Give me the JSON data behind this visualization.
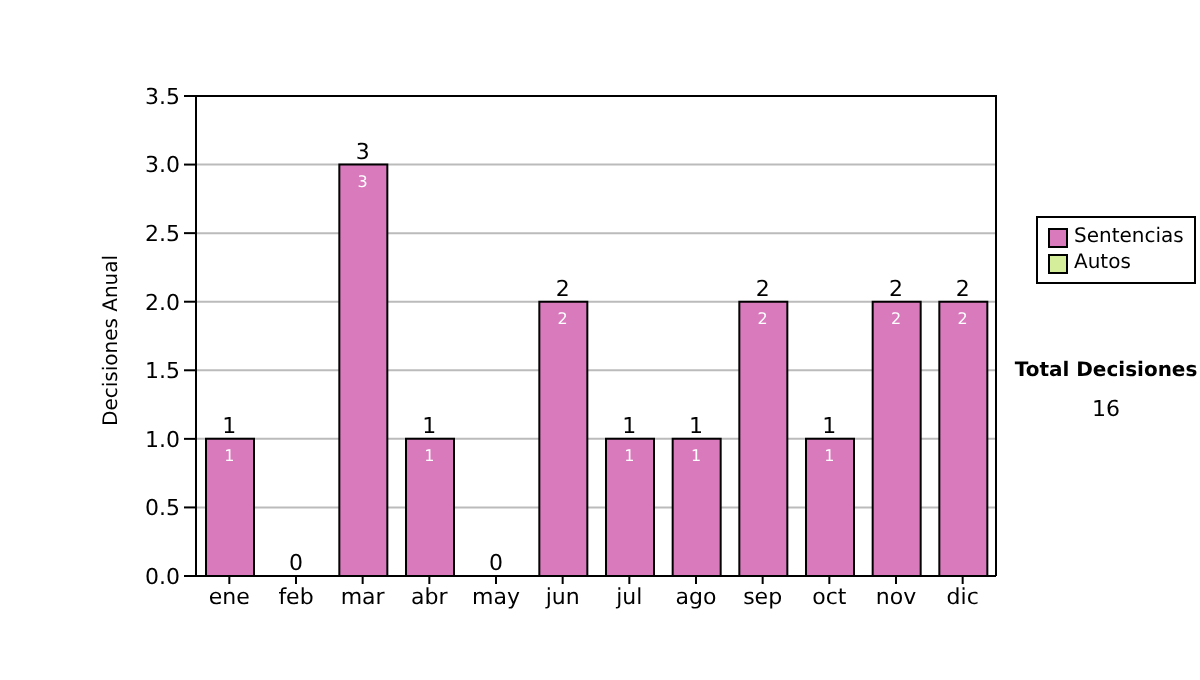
{
  "chart_data": {
    "type": "bar",
    "ylabel": "Decisiones Anual",
    "categories": [
      "ene",
      "feb",
      "mar",
      "abr",
      "may",
      "jun",
      "jul",
      "ago",
      "sep",
      "oct",
      "nov",
      "dic"
    ],
    "series": [
      {
        "name": "Sentencias",
        "color": "#d97abd",
        "values": [
          1,
          0,
          3,
          1,
          0,
          2,
          1,
          1,
          2,
          1,
          2,
          2
        ],
        "value_labels": [
          "1",
          null,
          "3",
          "1",
          null,
          "2",
          "1",
          "1",
          "2",
          "1",
          "2",
          "2"
        ]
      },
      {
        "name": "Autos",
        "color": "#d4ee9c",
        "values": [
          0,
          0,
          0,
          0,
          0,
          0,
          0,
          0,
          0,
          0,
          0,
          0
        ]
      }
    ],
    "stacked": true,
    "totals": [
      "1",
      "0",
      "3",
      "1",
      "0",
      "2",
      "1",
      "1",
      "2",
      "1",
      "2",
      "2"
    ],
    "ylim": [
      0,
      3.5
    ],
    "yticks": [
      {
        "value": 0,
        "label": "0.0"
      },
      {
        "value": 0.5,
        "label": "0.5"
      },
      {
        "value": 1,
        "label": "1.0"
      },
      {
        "value": 1.5,
        "label": "1.5"
      },
      {
        "value": 2,
        "label": "2.0"
      },
      {
        "value": 2.5,
        "label": "2.5"
      },
      {
        "value": 3,
        "label": "3.0"
      },
      {
        "value": 3.5,
        "label": "3.5"
      }
    ],
    "grid": "y",
    "legend": "right",
    "annotations": [
      "Total Decisiones",
      "16"
    ]
  }
}
